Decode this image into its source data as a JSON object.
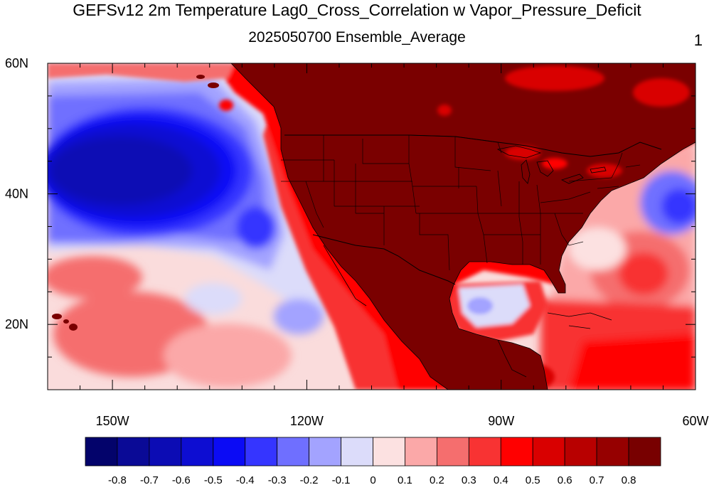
{
  "title": "GEFSv12 2m Temperature Lag0_Cross_Correlation w Vapor_Pressure_Deficit",
  "subtitle": "2025050700 Ensemble_Average",
  "corner_label": "1",
  "map": {
    "lon_range": [
      -160,
      -60
    ],
    "lat_range": [
      10,
      60
    ],
    "lon_ticks": [
      "150W",
      "120W",
      "90W",
      "60W"
    ],
    "lat_ticks": [
      "60N",
      "40N",
      "20N"
    ],
    "land_color": "#7a0000",
    "ocean_background": "#fadcdc"
  },
  "colorbar": {
    "colors": [
      "#03036b",
      "#0a0a96",
      "#0c0cb4",
      "#0d0dd2",
      "#0b0bf5",
      "#3535ff",
      "#6f6fff",
      "#a3a3ff",
      "#dcdcfa",
      "#fce1e1",
      "#fba8a8",
      "#f56e6e",
      "#f83333",
      "#ff0000",
      "#d90000",
      "#b80000",
      "#960000",
      "#780000"
    ],
    "labels": [
      "-0.8",
      "-0.7",
      "-0.6",
      "-0.5",
      "-0.4",
      "-0.3",
      "-0.2",
      "-0.1",
      "0",
      "0.1",
      "0.2",
      "0.3",
      "0.4",
      "0.5",
      "0.6",
      "0.7",
      "0.8"
    ]
  }
}
